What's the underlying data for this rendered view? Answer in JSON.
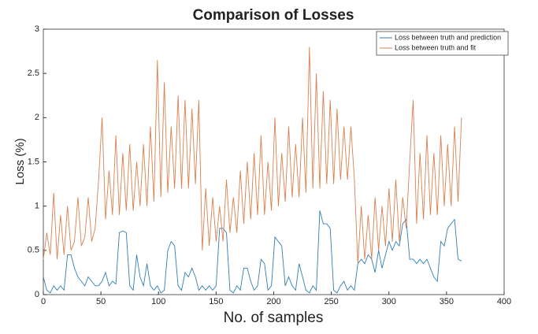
{
  "chart_data": {
    "type": "line",
    "title": "Comparison of Losses",
    "xlabel": "No. of samples",
    "ylabel": "Loss (%)",
    "x": [
      0,
      3,
      6,
      9,
      12,
      15,
      18,
      21,
      24,
      27,
      30,
      33,
      36,
      39,
      42,
      45,
      48,
      51,
      54,
      57,
      60,
      63,
      66,
      69,
      72,
      75,
      78,
      81,
      84,
      87,
      90,
      93,
      96,
      99,
      102,
      105,
      108,
      111,
      114,
      117,
      120,
      123,
      126,
      129,
      132,
      135,
      138,
      141,
      144,
      147,
      150,
      153,
      156,
      159,
      162,
      165,
      168,
      171,
      174,
      177,
      180,
      183,
      186,
      189,
      192,
      195,
      198,
      201,
      204,
      207,
      210,
      213,
      216,
      219,
      222,
      225,
      228,
      231,
      234,
      237,
      240,
      243,
      246,
      249,
      252,
      255,
      258,
      261,
      264,
      267,
      270,
      273,
      276,
      279,
      282,
      285,
      288,
      291,
      294,
      297,
      300,
      303,
      306,
      309,
      312,
      315,
      318,
      321,
      324,
      327,
      330,
      333,
      336,
      339,
      342,
      345,
      348,
      351,
      354,
      357,
      360,
      363
    ],
    "series": [
      {
        "name": "Loss between truth and prediction",
        "color": "#2f7fb5",
        "values": [
          0.2,
          0.05,
          0.02,
          0.1,
          0.05,
          0.1,
          0.05,
          0.45,
          0.45,
          0.3,
          0.2,
          0.15,
          0.1,
          0.2,
          0.15,
          0.1,
          0.1,
          0.15,
          0.25,
          0.1,
          0.15,
          0.12,
          0.7,
          0.72,
          0.7,
          0.1,
          0.05,
          0.45,
          0.2,
          0.1,
          0.35,
          0.1,
          0.05,
          0.1,
          0.02,
          0.05,
          0.5,
          0.6,
          0.55,
          0.1,
          0.05,
          0.25,
          0.2,
          0.3,
          0.2,
          0.05,
          0.1,
          0.05,
          0.1,
          0.05,
          0.1,
          0.75,
          0.75,
          0.7,
          0.05,
          0.02,
          0.1,
          0.05,
          0.3,
          0.3,
          0.15,
          0.05,
          0.1,
          0.4,
          0.35,
          0.05,
          0.1,
          0.65,
          0.6,
          0.55,
          0.1,
          0.2,
          0.1,
          0.05,
          0.35,
          0.2,
          0.05,
          0.02,
          0.1,
          0.05,
          0.95,
          0.8,
          0.8,
          0.75,
          0.05,
          0.02,
          0.1,
          0.15,
          0.05,
          0.1,
          0.05,
          0.35,
          0.4,
          0.35,
          0.45,
          0.4,
          0.25,
          0.5,
          0.3,
          0.45,
          0.6,
          0.5,
          0.6,
          0.55,
          0.8,
          0.85,
          0.4,
          0.4,
          0.35,
          0.4,
          0.35,
          0.4,
          0.3,
          0.2,
          0.15,
          0.6,
          0.55,
          0.75,
          0.8,
          0.85,
          0.4,
          0.38
        ]
      },
      {
        "name": "Loss between truth and fit",
        "color": "#d9804f",
        "values": [
          0.4,
          0.7,
          0.45,
          1.15,
          0.4,
          0.9,
          0.45,
          1.0,
          0.5,
          0.6,
          1.1,
          0.55,
          0.65,
          1.1,
          0.6,
          0.75,
          1.3,
          2.0,
          0.85,
          1.4,
          0.9,
          1.8,
          0.9,
          1.6,
          0.95,
          1.7,
          0.95,
          1.5,
          1.0,
          1.7,
          1.0,
          1.9,
          1.05,
          2.65,
          1.1,
          2.4,
          1.15,
          1.9,
          1.2,
          2.25,
          1.2,
          2.2,
          1.2,
          2.1,
          1.25,
          2.2,
          0.5,
          1.2,
          0.55,
          1.1,
          0.6,
          1.0,
          0.6,
          1.3,
          0.7,
          1.1,
          0.7,
          1.4,
          0.8,
          1.5,
          0.85,
          1.6,
          0.9,
          1.8,
          0.9,
          1.5,
          0.95,
          2.0,
          1.0,
          1.6,
          1.05,
          1.9,
          1.1,
          1.7,
          1.1,
          2.0,
          1.15,
          2.8,
          1.2,
          2.5,
          1.2,
          2.3,
          1.25,
          2.2,
          1.25,
          2.1,
          1.3,
          1.9,
          1.3,
          1.9,
          1.3,
          0.35,
          1.0,
          0.4,
          0.9,
          0.4,
          1.1,
          0.5,
          1.0,
          0.55,
          1.2,
          0.6,
          1.3,
          0.6,
          1.1,
          0.75,
          1.5,
          2.2,
          0.8,
          1.6,
          0.85,
          1.8,
          0.9,
          1.6,
          0.9,
          1.8,
          1.0,
          1.7,
          1.0,
          1.9,
          1.05,
          2.0
        ]
      }
    ],
    "xlim": [
      0,
      400
    ],
    "xticks": [
      0,
      50,
      100,
      150,
      200,
      250,
      300,
      350,
      400
    ],
    "ylim": [
      0,
      3
    ],
    "yticks": [
      0,
      0.5,
      1,
      1.5,
      2,
      2.5,
      3
    ],
    "grid": false,
    "legend": "upper right"
  }
}
